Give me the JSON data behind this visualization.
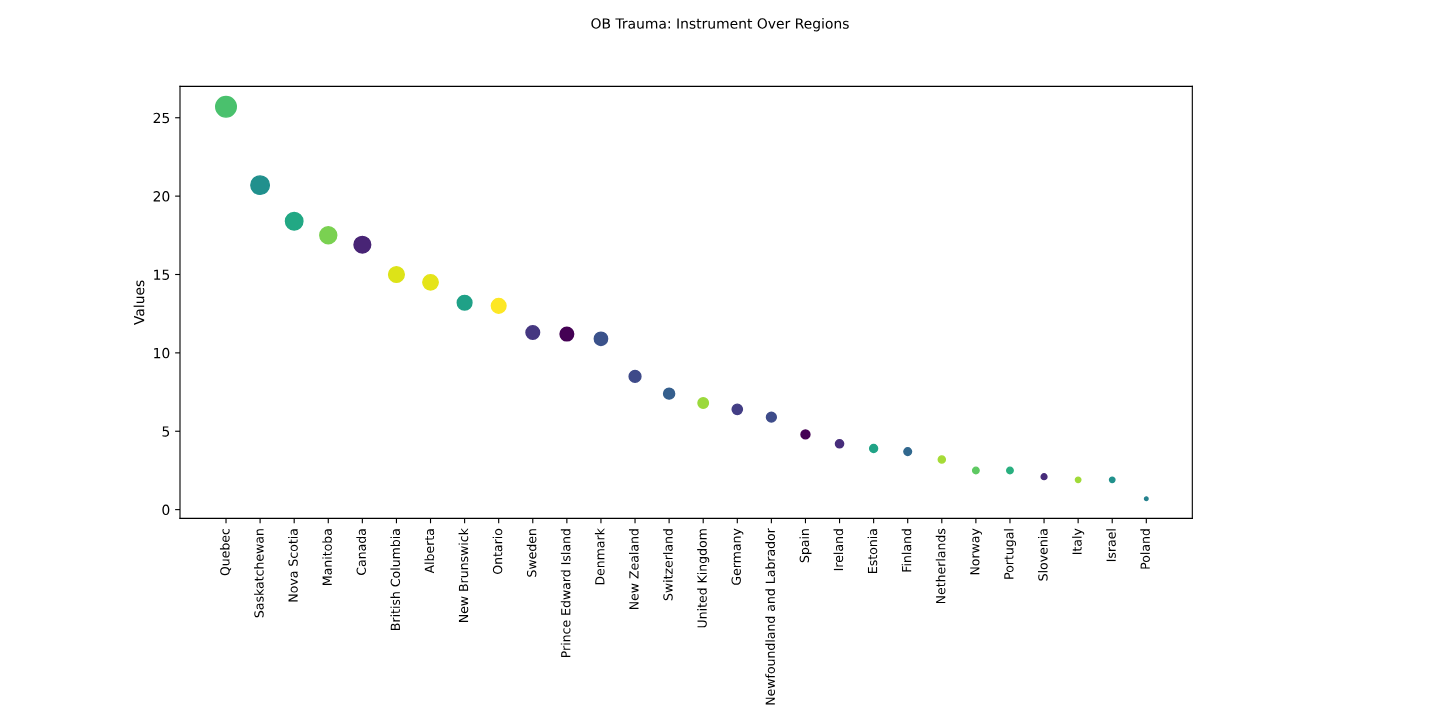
{
  "chart_data": {
    "type": "bubble",
    "title": "OB Trauma: Instrument Over Regions",
    "ylabel": "Values",
    "categories": [
      "Quebec",
      "Saskatchewan",
      "Nova Scotia",
      "Manitoba",
      "Canada",
      "British Columbia",
      "Alberta",
      "New Brunswick",
      "Ontario",
      "Sweden",
      "Prince Edward Island",
      "Denmark",
      "New Zealand",
      "Switzerland",
      "United Kingdom",
      "Germany",
      "Newfoundland and Labrador",
      "Spain",
      "Ireland",
      "Estonia",
      "Finland",
      "Netherlands",
      "Norway",
      "Portugal",
      "Slovenia",
      "Italy",
      "Israel",
      "Poland"
    ],
    "values": [
      25.7,
      20.7,
      18.4,
      17.5,
      16.9,
      15.0,
      14.5,
      13.2,
      13.0,
      11.3,
      11.2,
      10.9,
      8.5,
      7.4,
      6.8,
      6.4,
      5.9,
      4.8,
      4.2,
      3.9,
      3.7,
      3.2,
      2.5,
      2.5,
      2.1,
      1.9,
      1.9,
      0.7
    ],
    "sizes": [
      1.0,
      0.81,
      0.72,
      0.68,
      0.66,
      0.58,
      0.56,
      0.51,
      0.51,
      0.44,
      0.44,
      0.42,
      0.33,
      0.29,
      0.26,
      0.25,
      0.23,
      0.19,
      0.16,
      0.15,
      0.14,
      0.12,
      0.1,
      0.1,
      0.08,
      0.07,
      0.07,
      0.03
    ],
    "colors": [
      "#4ac16d",
      "#21908d",
      "#22a884",
      "#7ad151",
      "#482475",
      "#dde318",
      "#e5e419",
      "#1fa187",
      "#fde725",
      "#453781",
      "#440154",
      "#3b528b",
      "#3e4a89",
      "#355f8d",
      "#9bd93c",
      "#433e85",
      "#3e4c8a",
      "#440154",
      "#472d7b",
      "#20a386",
      "#31688e",
      "#a5db36",
      "#5ec962",
      "#29af7f",
      "#472c7a",
      "#a0da39",
      "#21918c",
      "#26828e"
    ],
    "ylim": [
      -0.56,
      27
    ],
    "yticks": [
      0,
      5,
      10,
      15,
      20,
      25
    ],
    "grid": false,
    "legend": false
  }
}
